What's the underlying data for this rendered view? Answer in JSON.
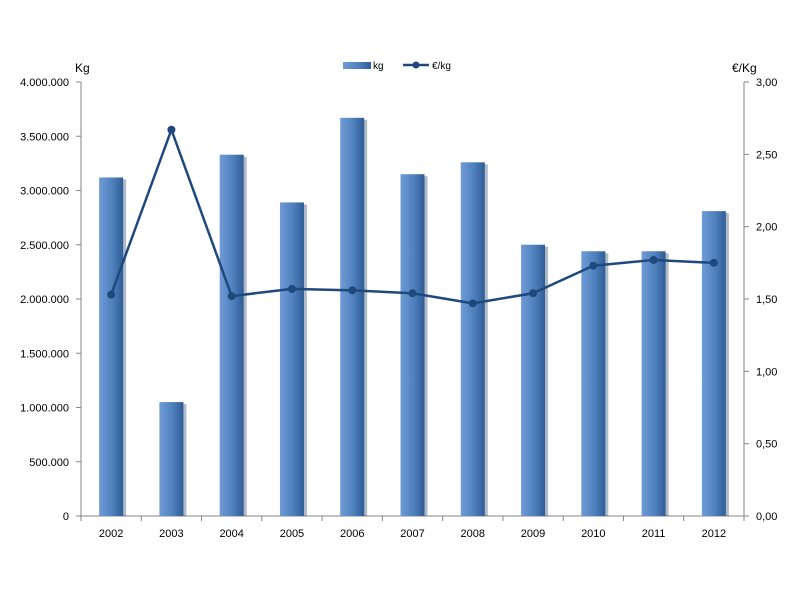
{
  "chart_data": {
    "type": "bar",
    "categories": [
      "2002",
      "2003",
      "2004",
      "2005",
      "2006",
      "2007",
      "2008",
      "2009",
      "2010",
      "2011",
      "2012"
    ],
    "series": [
      {
        "name": "kg",
        "type": "bar",
        "axis": "left",
        "color": "#4f81bd",
        "values": [
          3120000,
          1050000,
          3330000,
          2890000,
          3670000,
          3150000,
          3260000,
          2500000,
          2440000,
          2440000,
          2810000
        ]
      },
      {
        "name": "€/kg",
        "type": "line",
        "axis": "right",
        "color": "#1f497d",
        "values": [
          1.53,
          2.67,
          1.52,
          1.57,
          1.56,
          1.54,
          1.47,
          1.54,
          1.73,
          1.77,
          1.75
        ]
      }
    ],
    "ylabel": "Kg",
    "y2label": "€/Kg",
    "ylim": [
      0,
      4000000
    ],
    "y2lim": [
      0,
      3.0
    ],
    "yticks": [
      0,
      500000,
      1000000,
      1500000,
      2000000,
      2500000,
      3000000,
      3500000,
      4000000
    ],
    "yticklabels": [
      "0",
      "500.000",
      "1.000.000",
      "1.500.000",
      "2.000.000",
      "2.500.000",
      "3.000.000",
      "3.500.000",
      "4.000.000"
    ],
    "y2ticks": [
      0,
      0.5,
      1.0,
      1.5,
      2.0,
      2.5,
      3.0
    ],
    "y2ticklabels": [
      "0,00",
      "0,50",
      "1,00",
      "1,50",
      "2,00",
      "2,50",
      "3,00"
    ],
    "grid": false,
    "legend_position": "top-center"
  }
}
